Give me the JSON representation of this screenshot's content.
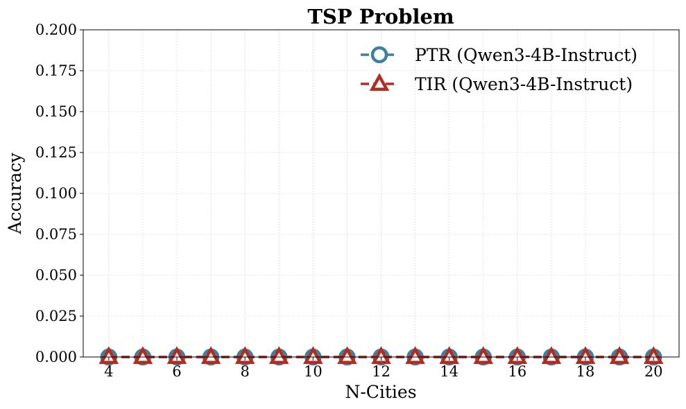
{
  "chart_data": {
    "type": "line",
    "title": "TSP Problem",
    "xlabel": "N-Cities",
    "ylabel": "Accuracy",
    "x": [
      4,
      5,
      6,
      7,
      8,
      9,
      10,
      11,
      12,
      13,
      14,
      15,
      16,
      17,
      18,
      19,
      20
    ],
    "xlim": [
      3.25,
      20.75
    ],
    "ylim": [
      0,
      0.2
    ],
    "xticks": [
      4,
      6,
      8,
      10,
      12,
      14,
      16,
      18,
      20
    ],
    "yticks": [
      0.0,
      0.025,
      0.05,
      0.075,
      0.1,
      0.125,
      0.15,
      0.175,
      0.2
    ],
    "xtick_labels": [
      "4",
      "6",
      "8",
      "10",
      "12",
      "14",
      "16",
      "18",
      "20"
    ],
    "ytick_labels": [
      "0.000",
      "0.025",
      "0.050",
      "0.075",
      "0.100",
      "0.125",
      "0.150",
      "0.175",
      "0.200"
    ],
    "grid": true,
    "legend_position": "top-right",
    "series": [
      {
        "name": "PTR (Qwen3-4B-Instruct)",
        "marker": "circle",
        "line_style": "dashed",
        "color": "#3b7fa3",
        "values": [
          0,
          0,
          0,
          0,
          0,
          0,
          0,
          0,
          0,
          0,
          0,
          0,
          0,
          0,
          0,
          0,
          0
        ]
      },
      {
        "name": "TIR (Qwen3-4B-Instruct)",
        "marker": "triangle",
        "line_style": "dashed",
        "color": "#b22d1f",
        "values": [
          0,
          0,
          0,
          0,
          0,
          0,
          0,
          0,
          0,
          0,
          0,
          0,
          0,
          0,
          0,
          0,
          0
        ]
      }
    ]
  }
}
